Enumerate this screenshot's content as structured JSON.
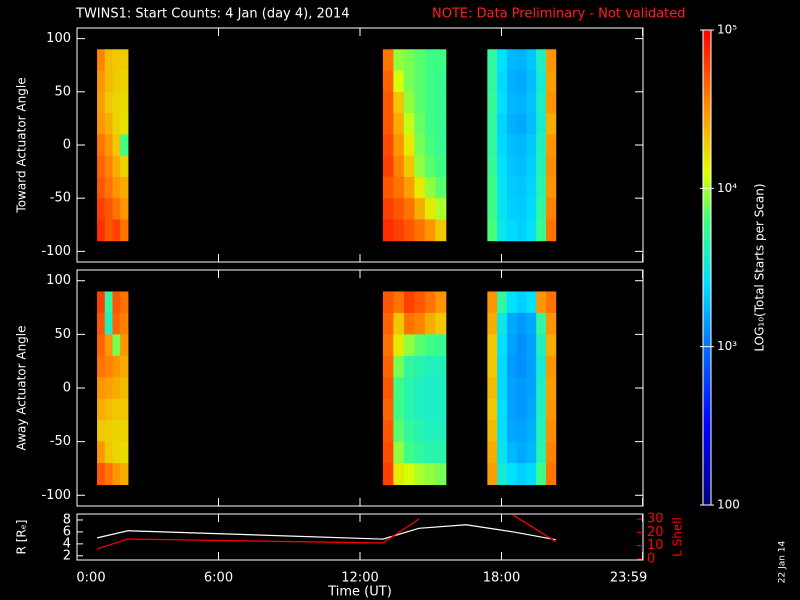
{
  "chart_data": [
    {
      "type": "heatmap",
      "title": "TWINS1: Start Counts:  4 Jan (day   4), 2014",
      "note": "NOTE: Data Preliminary - Not validated",
      "ylabel": "Toward Actuator Angle",
      "xlim": [
        0,
        24
      ],
      "ylim": [
        -110,
        110
      ],
      "yticks": [
        -100,
        -50,
        0,
        50,
        100
      ],
      "zlabel": "LOG₁₀(Total Starts per Scan)",
      "zlim": [
        100,
        100000
      ],
      "log_scale": true,
      "zticks": [
        {
          "value": 100000,
          "label": "10⁵"
        },
        {
          "value": 10000,
          "label": "10⁴"
        },
        {
          "value": 1000,
          "label": "10³"
        },
        100
      ],
      "colorscale": [
        [
          100,
          "#000080"
        ],
        [
          316,
          "#0000ff"
        ],
        [
          1000,
          "#0070ff"
        ],
        [
          2500,
          "#00e0ff"
        ],
        [
          6300,
          "#40ff80"
        ],
        [
          12600,
          "#e0ff00"
        ],
        [
          31600,
          "#ff9000"
        ],
        [
          100000,
          "#ff0000"
        ]
      ],
      "blocks": [
        {
          "time": [
            0.85,
            2.16
          ],
          "angle_range": [
            -90,
            90
          ],
          "values": [
            [
              35000,
              22000,
              20000,
              19000
            ],
            [
              30000,
              22000,
              19000,
              18000
            ],
            [
              28000,
              20000,
              18000,
              17000
            ],
            [
              30000,
              24000,
              18000,
              16000
            ],
            [
              40000,
              30000,
              20000,
              6000
            ],
            [
              45000,
              35000,
              25000,
              18000
            ],
            [
              50000,
              40000,
              30000,
              25000
            ],
            [
              60000,
              50000,
              40000,
              30000
            ],
            [
              70000,
              50000,
              60000,
              40000
            ]
          ]
        },
        {
          "time": [
            12.97,
            15.64
          ],
          "angle_range": [
            -90,
            90
          ],
          "values": [
            [
              40000,
              9000,
              8000,
              7000,
              6000,
              6000
            ],
            [
              45000,
              12000,
              8000,
              7000,
              6000,
              5500
            ],
            [
              50000,
              20000,
              9000,
              7000,
              6000,
              5500
            ],
            [
              50000,
              25000,
              11000,
              7500,
              6000,
              5500
            ],
            [
              55000,
              30000,
              15000,
              8000,
              6500,
              5500
            ],
            [
              60000,
              35000,
              20000,
              9000,
              7000,
              6000
            ],
            [
              50000,
              40000,
              28000,
              15000,
              9000,
              7000
            ],
            [
              60000,
              50000,
              40000,
              25000,
              15000,
              10000
            ],
            [
              70000,
              60000,
              50000,
              40000,
              30000,
              20000
            ]
          ]
        },
        {
          "time": [
            17.4,
            20.3
          ],
          "angle_range": [
            -90,
            90
          ],
          "values": [
            [
              5000,
              2500,
              1800,
              1700,
              2000,
              4000,
              30000
            ],
            [
              5000,
              2400,
              1700,
              1600,
              1900,
              3500,
              28000
            ],
            [
              5500,
              2500,
              1800,
              1700,
              2000,
              3800,
              30000
            ],
            [
              5000,
              2300,
              1700,
              1600,
              1900,
              3600,
              25000
            ],
            [
              5000,
              2400,
              1900,
              1800,
              2100,
              4000,
              30000
            ],
            [
              5500,
              2600,
              2000,
              1900,
              2200,
              4200,
              32000
            ],
            [
              6000,
              2700,
              2100,
              2000,
              2300,
              4500,
              30000
            ],
            [
              6000,
              2800,
              2200,
              2100,
              2400,
              5000,
              35000
            ],
            [
              6500,
              3000,
              2400,
              2200,
              2600,
              5500,
              40000
            ]
          ]
        }
      ]
    },
    {
      "type": "heatmap",
      "ylabel": "Away Actuator Angle",
      "xlim": [
        0,
        24
      ],
      "ylim": [
        -110,
        110
      ],
      "yticks": [
        -100,
        -50,
        0,
        50,
        100
      ],
      "blocks": [
        {
          "time": [
            0.85,
            2.16
          ],
          "angle_range": [
            -90,
            90
          ],
          "values": [
            [
              60000,
              5000,
              50000,
              40000
            ],
            [
              50000,
              4000,
              45000,
              35000
            ],
            [
              45000,
              30000,
              8000,
              30000
            ],
            [
              40000,
              35000,
              30000,
              25000
            ],
            [
              30000,
              28000,
              25000,
              22000
            ],
            [
              25000,
              22000,
              20000,
              20000
            ],
            [
              20000,
              19000,
              18000,
              18000
            ],
            [
              30000,
              20000,
              18000,
              17000
            ],
            [
              50000,
              40000,
              30000,
              25000
            ]
          ]
        },
        {
          "time": [
            12.97,
            15.64
          ],
          "angle_range": [
            -90,
            90
          ],
          "values": [
            [
              50000,
              40000,
              60000,
              50000,
              40000,
              30000
            ],
            [
              45000,
              20000,
              40000,
              35000,
              25000,
              20000
            ],
            [
              40000,
              15000,
              9000,
              7000,
              6000,
              5500
            ],
            [
              45000,
              8000,
              5000,
              4500,
              4000,
              4000
            ],
            [
              50000,
              6000,
              4500,
              4000,
              3800,
              3800
            ],
            [
              45000,
              6000,
              4500,
              4000,
              3800,
              3800
            ],
            [
              50000,
              7000,
              5000,
              4500,
              4000,
              4000
            ],
            [
              55000,
              9000,
              6000,
              5000,
              4500,
              4500
            ],
            [
              60000,
              15000,
              12000,
              10000,
              9000,
              8000
            ]
          ]
        },
        {
          "time": [
            17.4,
            20.3
          ],
          "angle_range": [
            -90,
            90
          ],
          "values": [
            [
              30000,
              5000,
              2500,
              2200,
              2500,
              30000,
              40000
            ],
            [
              25000,
              3000,
              1600,
              1400,
              1600,
              5000,
              30000
            ],
            [
              20000,
              2500,
              1500,
              1300,
              1500,
              4000,
              25000
            ],
            [
              20000,
              2400,
              1400,
              1300,
              1500,
              3500,
              30000
            ],
            [
              22000,
              2400,
              1500,
              1400,
              1500,
              3800,
              28000
            ],
            [
              20000,
              2500,
              1500,
              1400,
              1600,
              4000,
              30000
            ],
            [
              22000,
              2600,
              1600,
              1500,
              1700,
              4200,
              32000
            ],
            [
              25000,
              2800,
              1800,
              1600,
              1800,
              4500,
              35000
            ],
            [
              28000,
              3500,
              2500,
              2200,
              2400,
              6000,
              40000
            ]
          ]
        }
      ]
    },
    {
      "type": "line",
      "xlabel": "Time (UT)",
      "ylabel": "R [Rₑ]",
      "y2label": "L Shell",
      "annotation": "22 Jan 14",
      "xlim": [
        0,
        24
      ],
      "xticks": [
        {
          "value": 0,
          "label": "0:00"
        },
        {
          "value": 6,
          "label": "6:00"
        },
        {
          "value": 12,
          "label": "12:00"
        },
        {
          "value": 18,
          "label": "18:00"
        },
        {
          "value": 23.983,
          "label": "23:59"
        }
      ],
      "ylim": [
        1.3,
        9
      ],
      "yticks": [
        2,
        4,
        6,
        8
      ],
      "y2lim": [
        -0.8,
        33.8
      ],
      "y2ticks": [
        0,
        10,
        20,
        30
      ],
      "x": [
        0.85,
        2.16,
        12.97,
        14.5,
        16.5,
        18.5,
        20.3
      ],
      "series": [
        {
          "name": "R",
          "color": "#ffffff",
          "values": [
            5.0,
            6.2,
            4.8,
            6.6,
            7.2,
            6.0,
            4.7
          ]
        },
        {
          "name": "L",
          "color": "#ff0000",
          "axis": "y2",
          "values": [
            7.5,
            15,
            12,
            30,
            null,
            33,
            13
          ]
        }
      ]
    }
  ]
}
